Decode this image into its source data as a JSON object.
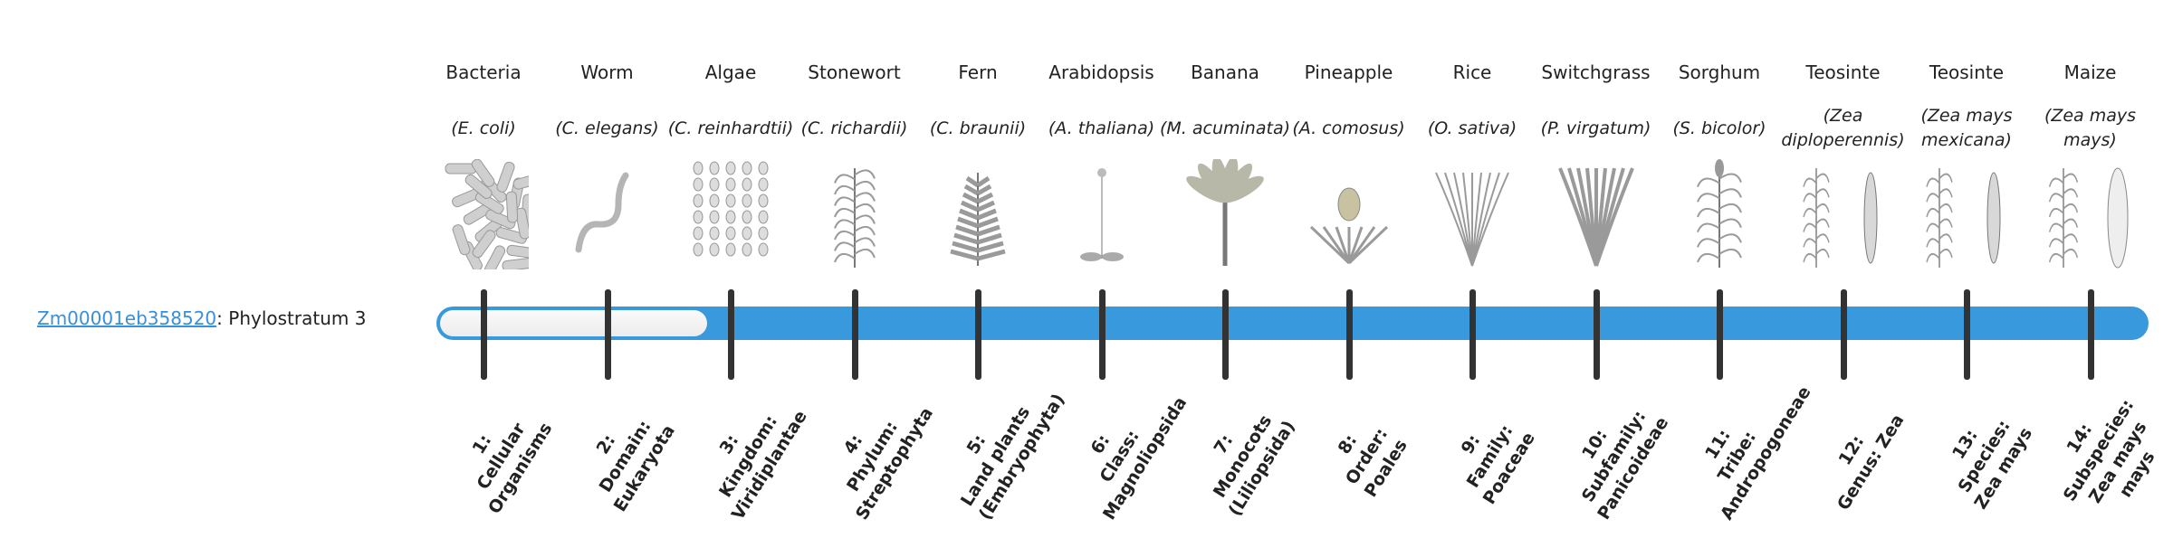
{
  "gene": {
    "id": "Zm00001eb358520",
    "separator": ":",
    "phylostratum_label": "Phylostratum 3",
    "phylostratum": 3,
    "total_strata": 14
  },
  "colors": {
    "bar": "#3899dc",
    "ticks": "#333333",
    "link": "#3a8fd6"
  },
  "strata": [
    {
      "common": "Bacteria",
      "scientific": "(E. coli)",
      "num": "1:",
      "rank": "Cellular Organisms",
      "icon": "bacteria"
    },
    {
      "common": "Worm",
      "scientific": "(C. elegans)",
      "num": "2:",
      "rank": "Domain: Eukaryota",
      "icon": "worm"
    },
    {
      "common": "Algae",
      "scientific": "(C. reinhardtii)",
      "num": "3:",
      "rank": "Kingdom: Viridiplantae",
      "icon": "algae"
    },
    {
      "common": "Stonewort",
      "scientific": "(C. richardii)",
      "num": "4:",
      "rank": "Phylum: Streptophyta",
      "icon": "stonewort"
    },
    {
      "common": "Fern",
      "scientific": "(C. braunii)",
      "num": "5:",
      "rank": "Land plants (Embryophyta)",
      "icon": "fern"
    },
    {
      "common": "Arabidopsis",
      "scientific": "(A. thaliana)",
      "num": "6:",
      "rank": "Class: Magnoliopsida",
      "icon": "arabidopsis"
    },
    {
      "common": "Banana",
      "scientific": "(M. acuminata)",
      "num": "7:",
      "rank": "Monocots (Liliopsida)",
      "icon": "banana"
    },
    {
      "common": "Pineapple",
      "scientific": "(A. comosus)",
      "num": "8:",
      "rank": "Order: Poales",
      "icon": "pineapple"
    },
    {
      "common": "Rice",
      "scientific": "(O. sativa)",
      "num": "9:",
      "rank": "Family: Poaceae",
      "icon": "rice"
    },
    {
      "common": "Switchgrass",
      "scientific": "(P. virgatum)",
      "num": "10:",
      "rank": "Subfamily: Panicoideae",
      "icon": "switchgrass"
    },
    {
      "common": "Sorghum",
      "scientific": "(S. bicolor)",
      "num": "11:",
      "rank": "Tribe: Andropogoneae",
      "icon": "sorghum"
    },
    {
      "common": "Teosinte",
      "scientific": "(Zea diploperennis)",
      "num": "12:",
      "rank": "Genus: Zea",
      "icon": "teosinte"
    },
    {
      "common": "Teosinte",
      "scientific": "(Zea mays mexicana)",
      "num": "13:",
      "rank": "Species: Zea mays",
      "icon": "teosinte"
    },
    {
      "common": "Maize",
      "scientific": "(Zea mays mays)",
      "num": "14:",
      "rank": "Subspecies: Zea mays mays",
      "icon": "maize"
    }
  ]
}
